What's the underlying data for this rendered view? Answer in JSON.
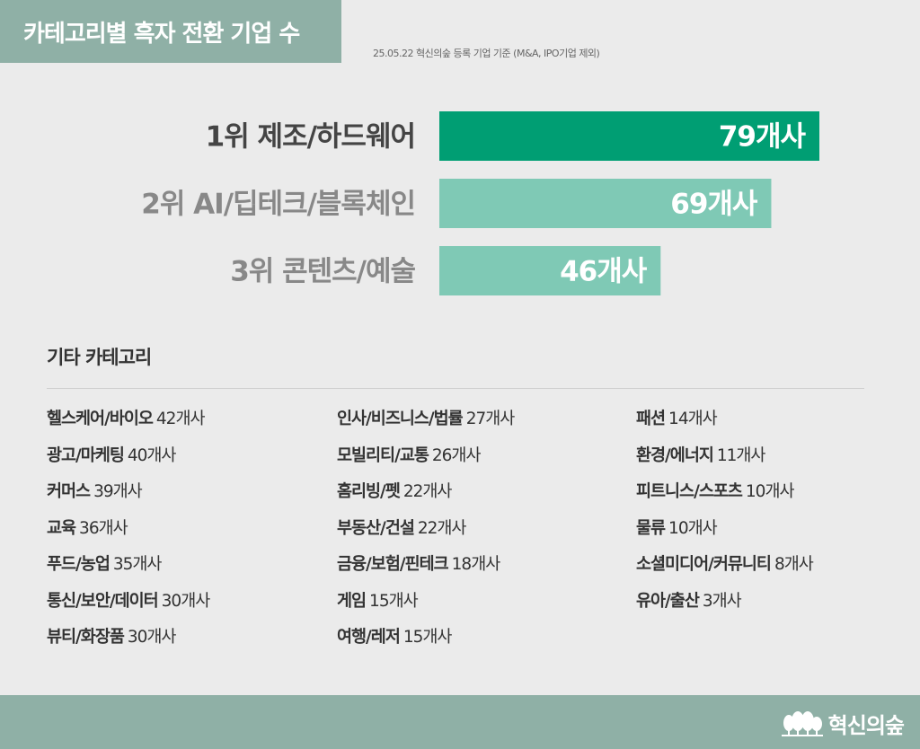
{
  "header": {
    "title": "카테고리별 흑자 전환 기업 수",
    "subtitle": "25.05.22 혁신의숲 등록 기업 기준 (M&A, IPO기업 제외)"
  },
  "chart_data": {
    "type": "bar",
    "orientation": "horizontal",
    "categories": [
      "1위  제조/하드웨어",
      "2위  AI/딥테크/블록체인",
      "3위  콘텐츠/예술"
    ],
    "values": [
      79,
      69,
      46
    ],
    "value_labels": [
      "79개사",
      "69개사",
      "46개사"
    ],
    "colors": [
      "#009e73",
      "#7fc9b5",
      "#7fc9b5"
    ],
    "label_colors": [
      "#444444",
      "#888888",
      "#888888"
    ]
  },
  "other": {
    "title": "기타 카테고리",
    "columns": [
      [
        {
          "name": "헬스케어/바이오",
          "count": "42개사"
        },
        {
          "name": "광고/마케팅",
          "count": "40개사"
        },
        {
          "name": "커머스",
          "count": "39개사"
        },
        {
          "name": "교육",
          "count": "36개사"
        },
        {
          "name": "푸드/농업",
          "count": "35개사"
        },
        {
          "name": "통신/보안/데이터",
          "count": "30개사"
        },
        {
          "name": "뷰티/화장품",
          "count": "30개사"
        }
      ],
      [
        {
          "name": "인사/비즈니스/법률",
          "count": "27개사"
        },
        {
          "name": "모빌리티/교통",
          "count": "26개사"
        },
        {
          "name": "홈리빙/펫",
          "count": "22개사"
        },
        {
          "name": "부동산/건설",
          "count": "22개사"
        },
        {
          "name": "금융/보험/핀테크",
          "count": "18개사"
        },
        {
          "name": "게임",
          "count": "15개사"
        },
        {
          "name": "여행/레저",
          "count": "15개사"
        }
      ],
      [
        {
          "name": "패션",
          "count": "14개사"
        },
        {
          "name": "환경/에너지",
          "count": "11개사"
        },
        {
          "name": "피트니스/스포츠",
          "count": "10개사"
        },
        {
          "name": "물류",
          "count": "10개사"
        },
        {
          "name": "소셜미디어/커뮤니티",
          "count": "8개사"
        },
        {
          "name": "유아/출산",
          "count": "3개사"
        }
      ]
    ]
  },
  "footer": {
    "brand": "혁신의숲",
    "logo_icon": "forest-trees-icon"
  }
}
